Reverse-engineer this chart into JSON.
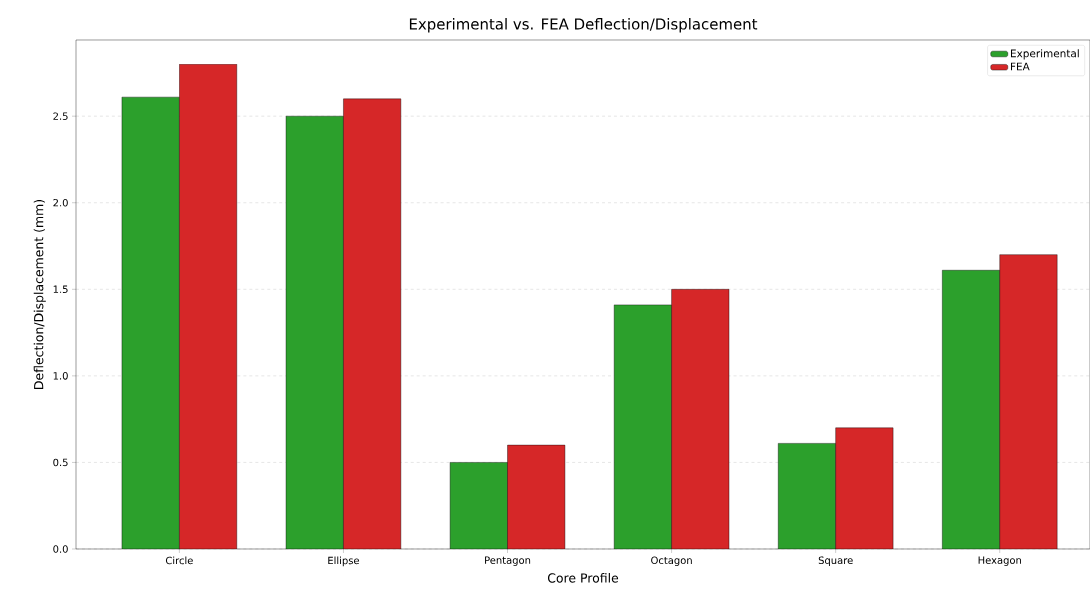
{
  "chart_data": {
    "type": "bar",
    "title": "Experimental vs. FEA Deflection/Displacement",
    "xlabel": "Core Profile",
    "ylabel": "Deflection/Displacement (mm)",
    "categories": [
      "Circle",
      "Ellipse",
      "Pentagon",
      "Octagon",
      "Square",
      "Hexagon"
    ],
    "series": [
      {
        "name": "Experimental",
        "color": "#2ca02c",
        "values": [
          2.61,
          2.5,
          0.5,
          1.41,
          0.61,
          1.61
        ]
      },
      {
        "name": "FEA",
        "color": "#d62728",
        "values": [
          2.8,
          2.6,
          0.6,
          1.5,
          0.7,
          1.7
        ]
      }
    ],
    "ylim": [
      0,
      2.94
    ],
    "yticks": [
      {
        "value": 0,
        "label": "0.0"
      },
      0.5,
      {
        "value": 1,
        "label": "1.0"
      },
      1.5,
      {
        "value": 2,
        "label": "2.0"
      },
      2.5
    ],
    "grid": "y",
    "legend": "top right"
  }
}
